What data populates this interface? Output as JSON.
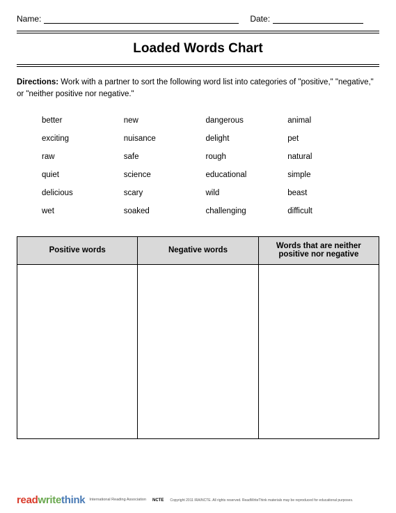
{
  "header": {
    "name_label": "Name:",
    "date_label": "Date:"
  },
  "title": "Loaded Words Chart",
  "directions_label": "Directions:",
  "directions_text": " Work with a partner to sort the following word list into categories of \"positive,\" \"negative,\" or \"neither positive nor negative.\"",
  "words": {
    "col1": [
      "better",
      "exciting",
      "raw",
      "quiet",
      "delicious",
      "wet"
    ],
    "col2": [
      "new",
      "nuisance",
      "safe",
      "science",
      "scary",
      "soaked"
    ],
    "col3": [
      "dangerous",
      "delight",
      "rough",
      "educational",
      "wild",
      "challenging"
    ],
    "col4": [
      "animal",
      "pet",
      "natural",
      "simple",
      "beast",
      "difficult"
    ]
  },
  "table_headers": {
    "positive": "Positive words",
    "negative": "Negative words",
    "neither": "Words that are neither positive nor negative"
  },
  "footer": {
    "logo_read": "read",
    "logo_write": "write",
    "logo_think": "think",
    "sub1": "International\nReading Association",
    "ncte": "NCTE",
    "copyright": "Copyright 2011 IRA/NCTE. All rights reserved. ReadWriteThink materials may be reproduced for educational purposes."
  }
}
